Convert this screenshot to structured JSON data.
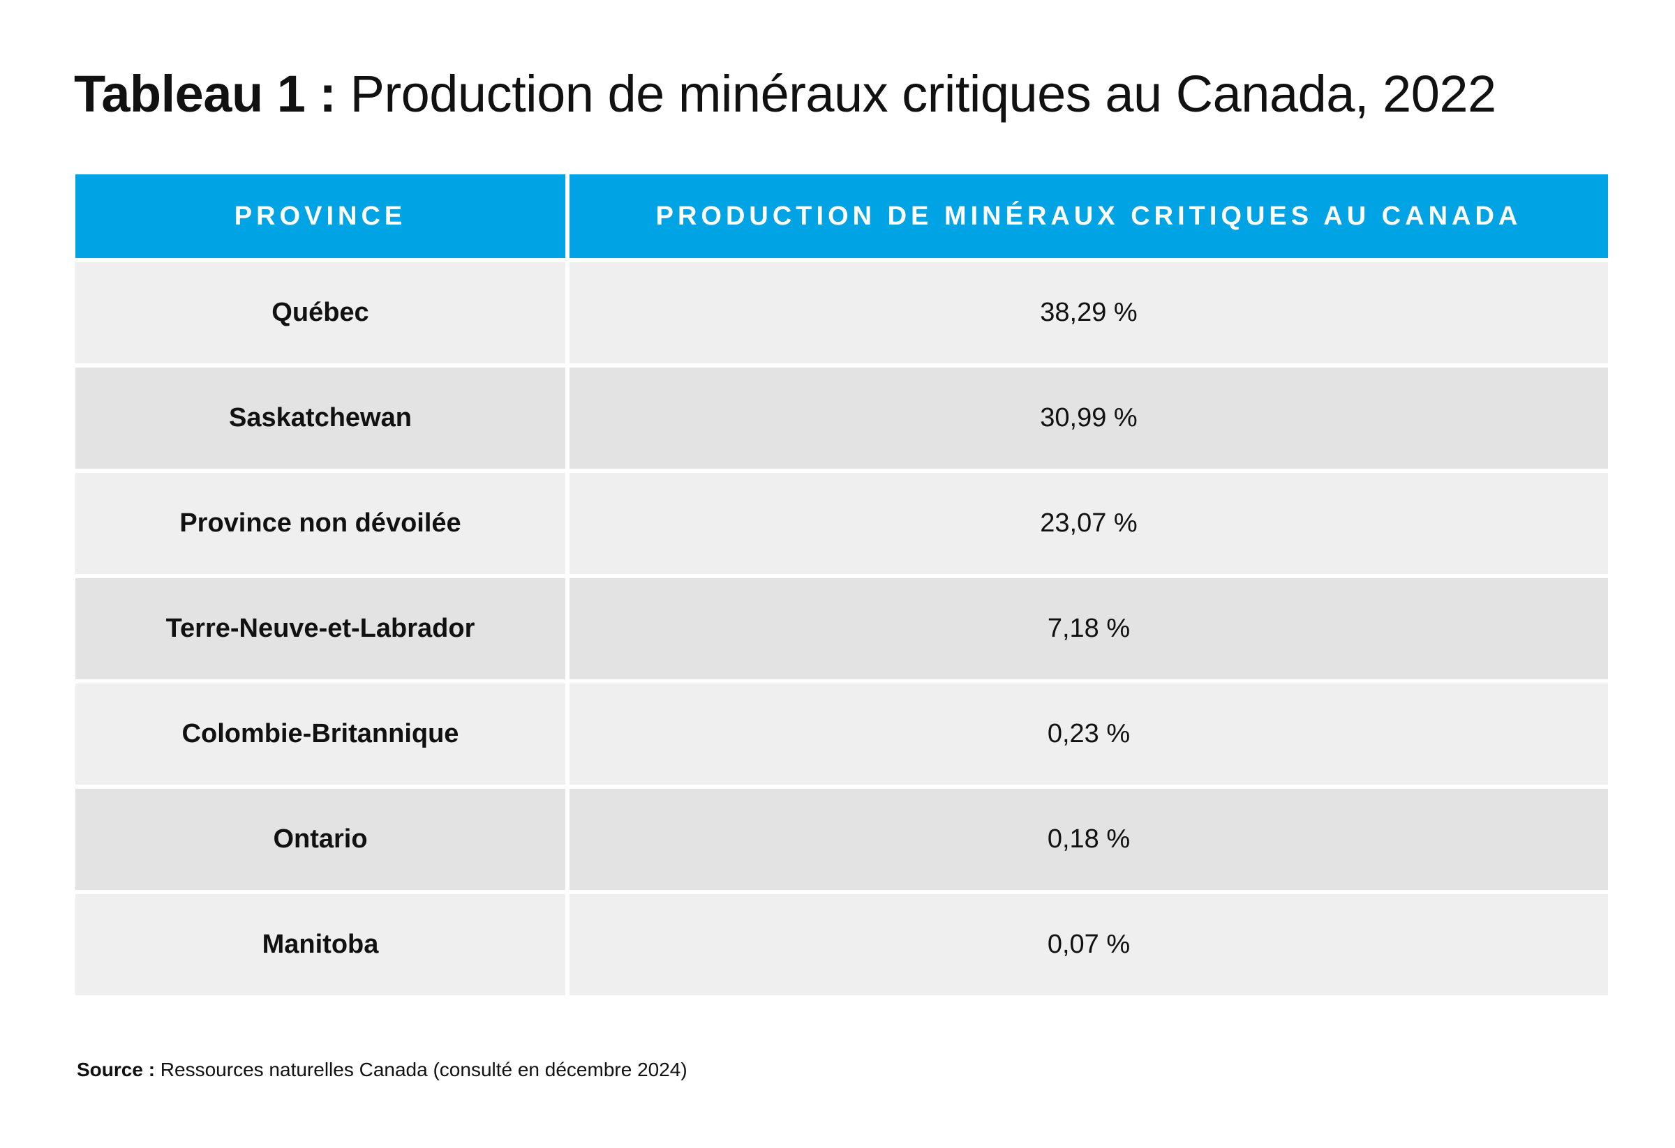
{
  "title": {
    "lead": "Tableau 1 :",
    "text": " Production de minéraux critiques au Canada, 2022"
  },
  "table": {
    "headers": [
      "PROVINCE",
      "PRODUCTION DE MINÉRAUX CRITIQUES AU CANADA"
    ],
    "rows": [
      {
        "province": "Québec",
        "value": "38,29 %"
      },
      {
        "province": "Saskatchewan",
        "value": "30,99 %"
      },
      {
        "province": "Province non dévoilée",
        "value": "23,07 %"
      },
      {
        "province": "Terre-Neuve-et-Labrador",
        "value": "7,18 %"
      },
      {
        "province": "Colombie-Britannique",
        "value": "0,23 %"
      },
      {
        "province": "Ontario",
        "value": "0,18 %"
      },
      {
        "province": "Manitoba",
        "value": "0,07 %"
      }
    ]
  },
  "source": {
    "label": "Source :",
    "text": " Ressources naturelles Canada (consulté en décembre 2024)"
  },
  "colors": {
    "header_bg": "#00a3e3",
    "row_light": "#efefef",
    "row_dark": "#e3e3e3"
  }
}
